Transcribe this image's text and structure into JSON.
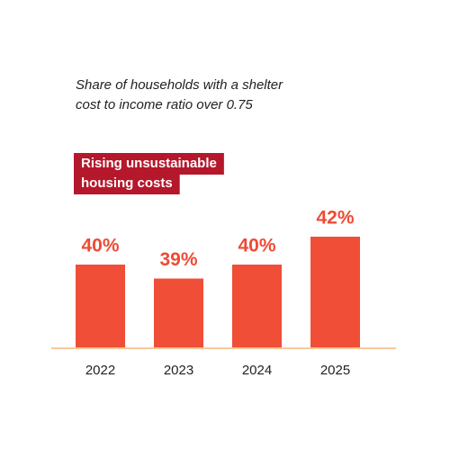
{
  "chart_data": {
    "type": "bar",
    "subtitle": [
      "Share of households with a shelter",
      "cost to income ratio over 0.75"
    ],
    "annotation": [
      "Rising unsustainable",
      "housing costs"
    ],
    "categories": [
      "2022",
      "2023",
      "2024",
      "2025"
    ],
    "values": [
      40,
      39,
      40,
      42
    ],
    "value_labels": [
      "40%",
      "39%",
      "40%",
      "42%"
    ],
    "color": "#f04e37",
    "ylim": [
      34,
      44
    ]
  }
}
